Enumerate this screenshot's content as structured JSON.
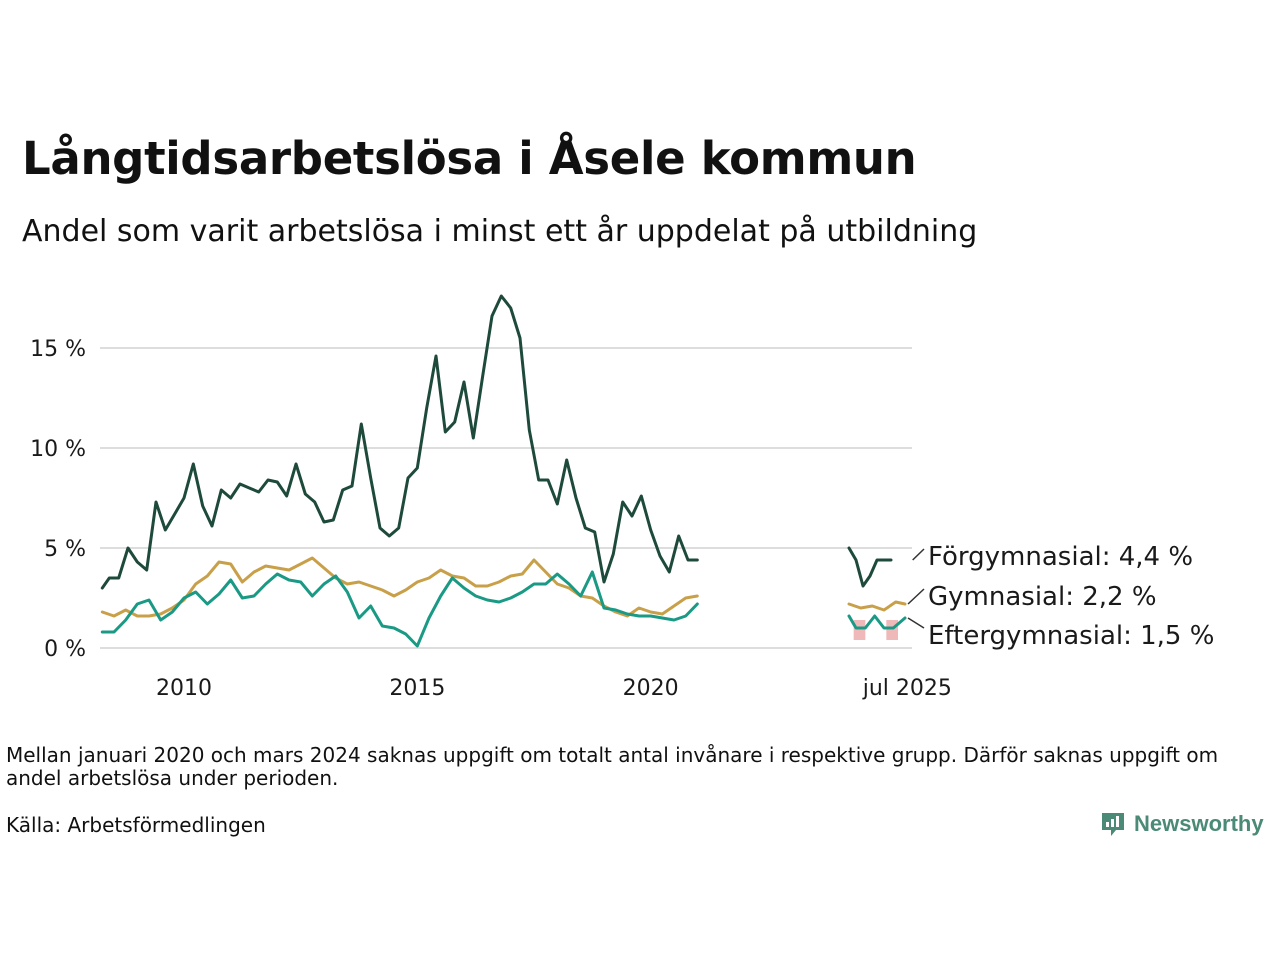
{
  "title": "Långtidsarbetslösa i Åsele kommun",
  "subtitle": "Andel som varit arbetslösa i minst ett år uppdelat på utbildning",
  "note": "Mellan januari 2020 och mars 2024 saknas uppgift om totalt antal invånare i respektive grupp. Därför saknas uppgift om andel arbetslösa under perioden.",
  "source": "Källa: Arbetsförmedlingen",
  "brand": "Newsworthy",
  "colors": {
    "forgymnasial": "#1e4a3c",
    "gymnasial": "#c9a04a",
    "eftergymnasial": "#1a9a85",
    "grid": "#dddddd",
    "marker": "#f0b9b9",
    "brand": "#4a8a76"
  },
  "chart_data": {
    "type": "line",
    "title": "Långtidsarbetslösa i Åsele kommun",
    "xlabel": "",
    "ylabel": "",
    "ylim": [
      0,
      17.8
    ],
    "yticks": [
      0,
      5,
      10,
      15
    ],
    "ytick_labels": [
      "0 %",
      "5 %",
      "10 %",
      "15 %"
    ],
    "xticks": [
      2010,
      2015,
      2020,
      2025.5
    ],
    "xtick_labels": [
      "2010",
      "2015",
      "2020",
      "jul 2025"
    ],
    "grid": true,
    "legend": "end-labels",
    "series": [
      {
        "name": "Förgymnasial",
        "end_label": "Förgymnasial: 4,4 %",
        "color_key": "forgymnasial",
        "x": [
          2008.25,
          2008.4,
          2008.6,
          2008.8,
          2009.0,
          2009.2,
          2009.4,
          2009.6,
          2009.8,
          2010.0,
          2010.2,
          2010.4,
          2010.6,
          2010.8,
          2011.0,
          2011.2,
          2011.4,
          2011.6,
          2011.8,
          2012.0,
          2012.2,
          2012.4,
          2012.6,
          2012.8,
          2013.0,
          2013.2,
          2013.4,
          2013.6,
          2013.8,
          2014.0,
          2014.2,
          2014.4,
          2014.6,
          2014.8,
          2015.0,
          2015.2,
          2015.4,
          2015.6,
          2015.8,
          2016.0,
          2016.2,
          2016.4,
          2016.6,
          2016.8,
          2017.0,
          2017.2,
          2017.4,
          2017.6,
          2017.8,
          2018.0,
          2018.2,
          2018.4,
          2018.6,
          2018.8,
          2019.0,
          2019.2,
          2019.4,
          2019.6,
          2019.8,
          2020.0,
          2020.2,
          2020.4,
          2020.6,
          2020.8,
          2021.0,
          2024.25,
          2024.4,
          2024.55,
          2024.7,
          2024.85,
          2025.0,
          2025.15,
          2025.3,
          2025.45,
          2025.55
        ],
        "y": [
          3.0,
          3.5,
          3.5,
          5.0,
          4.3,
          3.9,
          7.3,
          5.9,
          6.7,
          7.5,
          9.2,
          7.1,
          6.1,
          7.9,
          7.5,
          8.2,
          8.0,
          7.8,
          8.4,
          8.3,
          7.6,
          9.2,
          7.7,
          7.3,
          6.3,
          6.4,
          7.9,
          8.1,
          11.2,
          8.5,
          6.0,
          5.6,
          6.0,
          8.5,
          9.0,
          12.0,
          14.6,
          10.8,
          11.3,
          13.3,
          10.5,
          13.6,
          16.6,
          17.6,
          17.0,
          15.5,
          10.9,
          8.4,
          8.4,
          7.2,
          9.4,
          7.5,
          6.0,
          5.8,
          3.3,
          4.7,
          7.3,
          6.6,
          7.6,
          5.9,
          4.6,
          3.8,
          5.6,
          4.4,
          4.4,
          5.0,
          4.4,
          3.1,
          3.6,
          4.4,
          4.4,
          4.4,
          4.4,
          4.4,
          4.4
        ],
        "segments": [
          [
            0,
            65
          ],
          [
            65,
            72
          ]
        ]
      },
      {
        "name": "Gymnasial",
        "end_label": "Gymnasial: 2,2 %",
        "color_key": "gymnasial",
        "x": [
          2008.25,
          2008.5,
          2008.75,
          2009.0,
          2009.25,
          2009.5,
          2009.75,
          2010.0,
          2010.25,
          2010.5,
          2010.75,
          2011.0,
          2011.25,
          2011.5,
          2011.75,
          2012.0,
          2012.25,
          2012.5,
          2012.75,
          2013.0,
          2013.25,
          2013.5,
          2013.75,
          2014.0,
          2014.25,
          2014.5,
          2014.75,
          2015.0,
          2015.25,
          2015.5,
          2015.75,
          2016.0,
          2016.25,
          2016.5,
          2016.75,
          2017.0,
          2017.25,
          2017.5,
          2017.75,
          2018.0,
          2018.25,
          2018.5,
          2018.75,
          2019.0,
          2019.25,
          2019.5,
          2019.75,
          2020.0,
          2020.25,
          2020.5,
          2020.75,
          2021.0,
          2024.25,
          2024.5,
          2024.75,
          2025.0,
          2025.25,
          2025.45
        ],
        "y": [
          1.8,
          1.6,
          1.9,
          1.6,
          1.6,
          1.7,
          2.0,
          2.4,
          3.2,
          3.6,
          4.3,
          4.2,
          3.3,
          3.8,
          4.1,
          4.0,
          3.9,
          4.2,
          4.5,
          4.0,
          3.5,
          3.2,
          3.3,
          3.1,
          2.9,
          2.6,
          2.9,
          3.3,
          3.5,
          3.9,
          3.6,
          3.5,
          3.1,
          3.1,
          3.3,
          3.6,
          3.7,
          4.4,
          3.8,
          3.2,
          3.0,
          2.6,
          2.5,
          2.1,
          1.8,
          1.6,
          2.0,
          1.8,
          1.7,
          2.1,
          2.5,
          2.6,
          2.2,
          2.0,
          2.1,
          1.9,
          2.3,
          2.2
        ],
        "segments": [
          [
            0,
            52
          ],
          [
            52,
            58
          ]
        ]
      },
      {
        "name": "Eftergymnasial",
        "end_label": "Eftergymnasial: 1,5 %",
        "color_key": "eftergymnasial",
        "x": [
          2008.25,
          2008.5,
          2008.75,
          2009.0,
          2009.25,
          2009.5,
          2009.75,
          2010.0,
          2010.25,
          2010.5,
          2010.75,
          2011.0,
          2011.25,
          2011.5,
          2011.75,
          2012.0,
          2012.25,
          2012.5,
          2012.75,
          2013.0,
          2013.25,
          2013.5,
          2013.75,
          2014.0,
          2014.25,
          2014.5,
          2014.75,
          2015.0,
          2015.25,
          2015.5,
          2015.75,
          2016.0,
          2016.25,
          2016.5,
          2016.75,
          2017.0,
          2017.25,
          2017.5,
          2017.75,
          2018.0,
          2018.25,
          2018.5,
          2018.75,
          2019.0,
          2019.25,
          2019.5,
          2019.75,
          2020.0,
          2020.25,
          2020.5,
          2020.75,
          2021.0,
          2024.25,
          2024.4,
          2024.6,
          2024.8,
          2025.0,
          2025.2,
          2025.45
        ],
        "y": [
          0.8,
          0.8,
          1.4,
          2.2,
          2.4,
          1.4,
          1.8,
          2.5,
          2.8,
          2.2,
          2.7,
          3.4,
          2.5,
          2.6,
          3.2,
          3.7,
          3.4,
          3.3,
          2.6,
          3.2,
          3.6,
          2.8,
          1.5,
          2.1,
          1.1,
          1.0,
          0.7,
          0.1,
          1.5,
          2.6,
          3.5,
          3.0,
          2.6,
          2.4,
          2.3,
          2.5,
          2.8,
          3.2,
          3.2,
          3.7,
          3.2,
          2.6,
          3.8,
          2.0,
          1.9,
          1.7,
          1.6,
          1.6,
          1.5,
          1.4,
          1.6,
          2.2,
          1.6,
          1.0,
          1.0,
          1.6,
          1.0,
          1.0,
          1.5
        ],
        "segments": [
          [
            0,
            52
          ],
          [
            52,
            59
          ]
        ]
      }
    ],
    "markers": [
      {
        "x_from": 2024.35,
        "x_to": 2024.6,
        "y_from": 0.4,
        "y_to": 1.4
      },
      {
        "x_from": 2025.05,
        "x_to": 2025.3,
        "y_from": 0.4,
        "y_to": 1.4
      }
    ]
  }
}
